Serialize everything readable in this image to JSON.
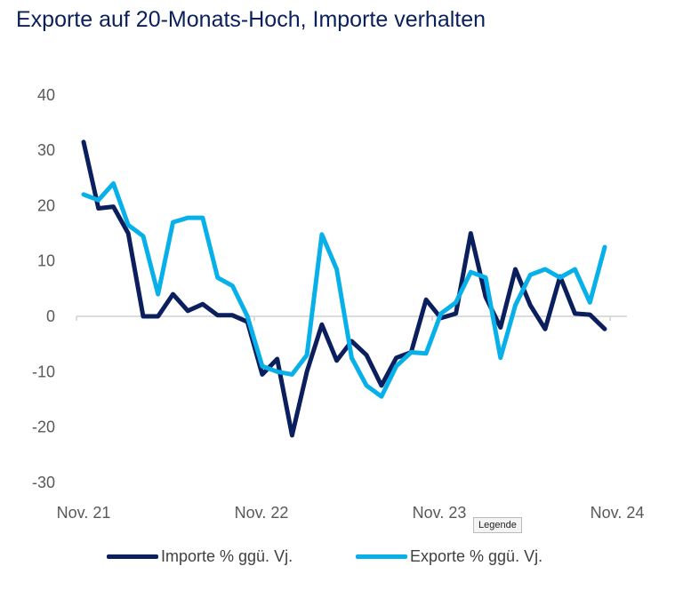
{
  "title": "Exporte auf 20-Monats-Hoch, Importe verhalten",
  "tooltip": "Legende",
  "chart_data": {
    "type": "line",
    "title": "Exporte auf 20-Monats-Hoch, Importe verhalten",
    "ylim": [
      -30,
      40
    ],
    "yticks": [
      40,
      30,
      20,
      10,
      0,
      -10,
      -20,
      -30
    ],
    "xtick_labels": [
      "Nov. 21",
      "Nov. 22",
      "Nov. 23",
      "Nov. 24"
    ],
    "grid": false,
    "legend": "bottom",
    "series": [
      {
        "name": "Importe % ggü. Vj.",
        "color": "#0b1f5e",
        "values": [
          31.5,
          19.5,
          19.8,
          15,
          0,
          0,
          4,
          1,
          2.2,
          0.2,
          0.2,
          -1,
          -10.5,
          -7.7,
          -21.5,
          -10,
          -1.5,
          -8,
          -4.5,
          -7,
          -12.5,
          -7.5,
          -6.5,
          3,
          -0.3,
          0.5,
          15,
          3.5,
          -2,
          8.5,
          2,
          -2.3,
          7.2,
          0.5,
          0.3,
          -2.3
        ]
      },
      {
        "name": "Exporte % ggü. Vj.",
        "color": "#08b0ea",
        "values": [
          22,
          21,
          24,
          16.5,
          14.5,
          4,
          17,
          17.8,
          17.8,
          7,
          5.5,
          0,
          -9,
          -10,
          -10.5,
          -7,
          14.8,
          8.5,
          -7.5,
          -12.5,
          -14.5,
          -9,
          -6.5,
          -6.7,
          0.5,
          2.5,
          8,
          7,
          -7.5,
          2,
          7.5,
          8.5,
          7,
          8.5,
          2.5,
          12.5
        ]
      }
    ]
  }
}
